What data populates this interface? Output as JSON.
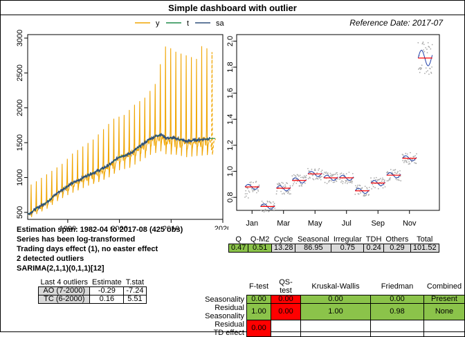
{
  "title": "Simple dashboard with outlier",
  "reference_date": "Reference Date: 2017-07",
  "colors": {
    "y": "#f0a500",
    "t": "#1e8a4a",
    "sa": "#2e4f7a",
    "red": "#ff0000",
    "green": "#8bc34a",
    "grey_points": "#aaaaaa"
  },
  "chart_data": [
    {
      "type": "line",
      "series": [
        {
          "name": "y",
          "color": "#f0a500"
        },
        {
          "name": "t",
          "color": "#1e8a4a"
        },
        {
          "name": "sa",
          "color": "#2e4f7a"
        }
      ],
      "x_ticks": [
        "1990",
        "2000",
        "2010",
        "2020"
      ],
      "x_range": [
        1982.25,
        2020
      ],
      "y_ticks": [
        "500",
        "1000",
        "1500",
        "2000",
        "2500",
        "3000"
      ],
      "y_range": [
        400,
        3050
      ],
      "start": 1982.25,
      "end": 2017.58,
      "forecast_end": 2018.58,
      "peaks": [
        [
          1983,
          900
        ],
        [
          1985,
          1000
        ],
        [
          1987,
          1100
        ],
        [
          1989,
          1200
        ],
        [
          1991,
          1350
        ],
        [
          1993,
          1450
        ],
        [
          1995,
          1550
        ],
        [
          1997,
          1700
        ],
        [
          1999,
          1850
        ],
        [
          2001,
          1900
        ],
        [
          2003,
          2050
        ],
        [
          2005,
          2150
        ],
        [
          2007,
          2350
        ],
        [
          2008,
          2650
        ],
        [
          2009,
          2900
        ],
        [
          2011,
          2800
        ],
        [
          2013,
          2750
        ],
        [
          2015,
          2700
        ],
        [
          2016,
          2900
        ],
        [
          2017,
          2850
        ]
      ],
      "sa_points": [
        [
          1982.25,
          470
        ],
        [
          1984,
          560
        ],
        [
          1986,
          650
        ],
        [
          1988,
          780
        ],
        [
          1990,
          880
        ],
        [
          1992,
          960
        ],
        [
          1994,
          1040
        ],
        [
          1996,
          1100
        ],
        [
          1998,
          1180
        ],
        [
          2000,
          1300
        ],
        [
          2002,
          1340
        ],
        [
          2004,
          1450
        ],
        [
          2006,
          1560
        ],
        [
          2008,
          1620
        ],
        [
          2009,
          1570
        ],
        [
          2011,
          1560
        ],
        [
          2013,
          1520
        ],
        [
          2015,
          1540
        ],
        [
          2017.58,
          1560
        ]
      ]
    },
    {
      "type": "line",
      "x_ticks": [
        "Jan",
        "Mar",
        "May",
        "Jul",
        "Sep",
        "Nov"
      ],
      "y_ticks": [
        "0.8",
        "1.0",
        "1.2",
        "1.4",
        "1.6",
        "1.8",
        "2.0"
      ],
      "y_range": [
        0.7,
        2.05
      ],
      "monthly_mean": [
        0.88,
        0.73,
        0.87,
        0.93,
        0.98,
        0.95,
        0.95,
        0.85,
        0.91,
        0.97,
        1.1,
        1.87
      ]
    }
  ],
  "info": {
    "span": "Estimation span: 1982-04 to 2017-08 (425 obs)",
    "log": "Series has been log-transformed",
    "td": "Trading days effect (1), no easter effect",
    "outliers": "2 detected outliers",
    "sarima": "SARIMA(2,1,1)(0,1,1)[12]"
  },
  "outlier_table": {
    "headers": [
      "Last 4 outliers",
      "Estimate",
      "T.stat"
    ],
    "rows": [
      [
        "AO (7-2000)",
        "-0.29",
        "-7.24"
      ],
      [
        "TC (6-2000)",
        "0.16",
        "5.51"
      ]
    ]
  },
  "variance_table": {
    "headers": [
      "Q",
      "Q-M2",
      "Cycle",
      "Seasonal",
      "Irregular",
      "TDH",
      "Others",
      "Total"
    ],
    "values": [
      "0.47",
      "0.51",
      "13.28",
      "86.95",
      "0.75",
      "0.24",
      "0.29",
      "101.52"
    ]
  },
  "tests_table": {
    "headers": [
      "F-test",
      "QS-test",
      "Kruskal-Wallis",
      "Friedman",
      "Combined"
    ],
    "rows": [
      {
        "label": "Seasonality",
        "values": [
          "0.00",
          "0.00",
          "0.00",
          "0.00",
          "Present"
        ]
      },
      {
        "label": "Residual Seasonality",
        "values": [
          "1.00",
          "0.00",
          "1.00",
          "0.98",
          "None"
        ]
      },
      {
        "label": "Residual TD effect",
        "values": [
          "0.00",
          "",
          "",
          "",
          ""
        ]
      }
    ]
  }
}
